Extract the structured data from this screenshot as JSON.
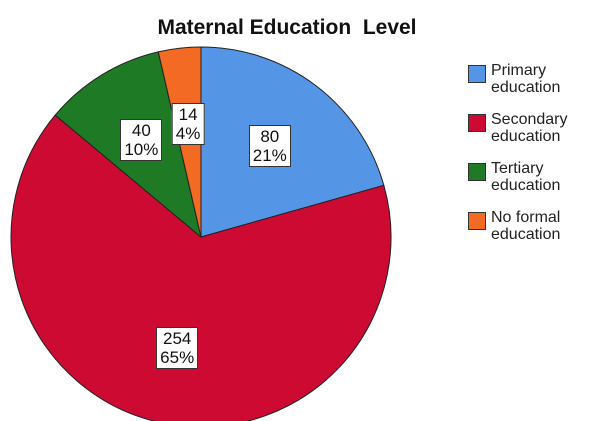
{
  "chart_data": {
    "type": "pie",
    "title": "Maternal Education  Level",
    "categories": [
      "Primary education",
      "Secondary education",
      "Tertiary education",
      "No formal education"
    ],
    "values": [
      80,
      254,
      40,
      14
    ],
    "percent_labels": [
      "21%",
      "65%",
      "10%",
      "4%"
    ],
    "colors": [
      "#5595e6",
      "#cc0a32",
      "#1f7a26",
      "#f26a24"
    ],
    "legend": "right"
  }
}
